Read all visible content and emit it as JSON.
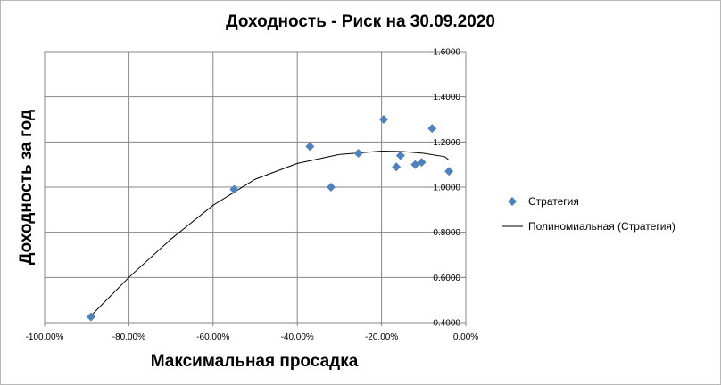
{
  "chart_data": {
    "type": "scatter",
    "title": "Доходность - Риск на 30.09.2020",
    "xlabel": "Максимальная просадка",
    "ylabel": "Доходность за год",
    "xlim": [
      -1.0,
      0.0
    ],
    "ylim": [
      0.4,
      1.6
    ],
    "x_ticks": [
      "-100.00%",
      "-80.00%",
      "-60.00%",
      "-40.00%",
      "-20.00%",
      "0.00%"
    ],
    "y_ticks": [
      "0.4000",
      "0.6000",
      "0.8000",
      "1.0000",
      "1.2000",
      "1.4000",
      "1.6000"
    ],
    "grid": true,
    "legend_position": "right",
    "series": [
      {
        "name": "Стратегия",
        "marker": "diamond",
        "color": "#4f81bd",
        "points": [
          {
            "x": -0.89,
            "y": 0.425
          },
          {
            "x": -0.55,
            "y": 0.99
          },
          {
            "x": -0.37,
            "y": 1.18
          },
          {
            "x": -0.32,
            "y": 1.0
          },
          {
            "x": -0.255,
            "y": 1.15
          },
          {
            "x": -0.195,
            "y": 1.3
          },
          {
            "x": -0.165,
            "y": 1.09
          },
          {
            "x": -0.155,
            "y": 1.14
          },
          {
            "x": -0.12,
            "y": 1.1
          },
          {
            "x": -0.105,
            "y": 1.11
          },
          {
            "x": -0.08,
            "y": 1.26
          },
          {
            "x": -0.04,
            "y": 1.07
          }
        ]
      }
    ],
    "trendline": {
      "name": "Полиномиальная (Стратегия)",
      "type": "polynomial",
      "color": "#000000",
      "points": [
        {
          "x": -0.89,
          "y": 0.43
        },
        {
          "x": -0.8,
          "y": 0.6
        },
        {
          "x": -0.7,
          "y": 0.77
        },
        {
          "x": -0.6,
          "y": 0.92
        },
        {
          "x": -0.5,
          "y": 1.035
        },
        {
          "x": -0.4,
          "y": 1.105
        },
        {
          "x": -0.3,
          "y": 1.145
        },
        {
          "x": -0.2,
          "y": 1.16
        },
        {
          "x": -0.15,
          "y": 1.158
        },
        {
          "x": -0.1,
          "y": 1.15
        },
        {
          "x": -0.05,
          "y": 1.135
        },
        {
          "x": -0.04,
          "y": 1.12
        }
      ]
    }
  }
}
